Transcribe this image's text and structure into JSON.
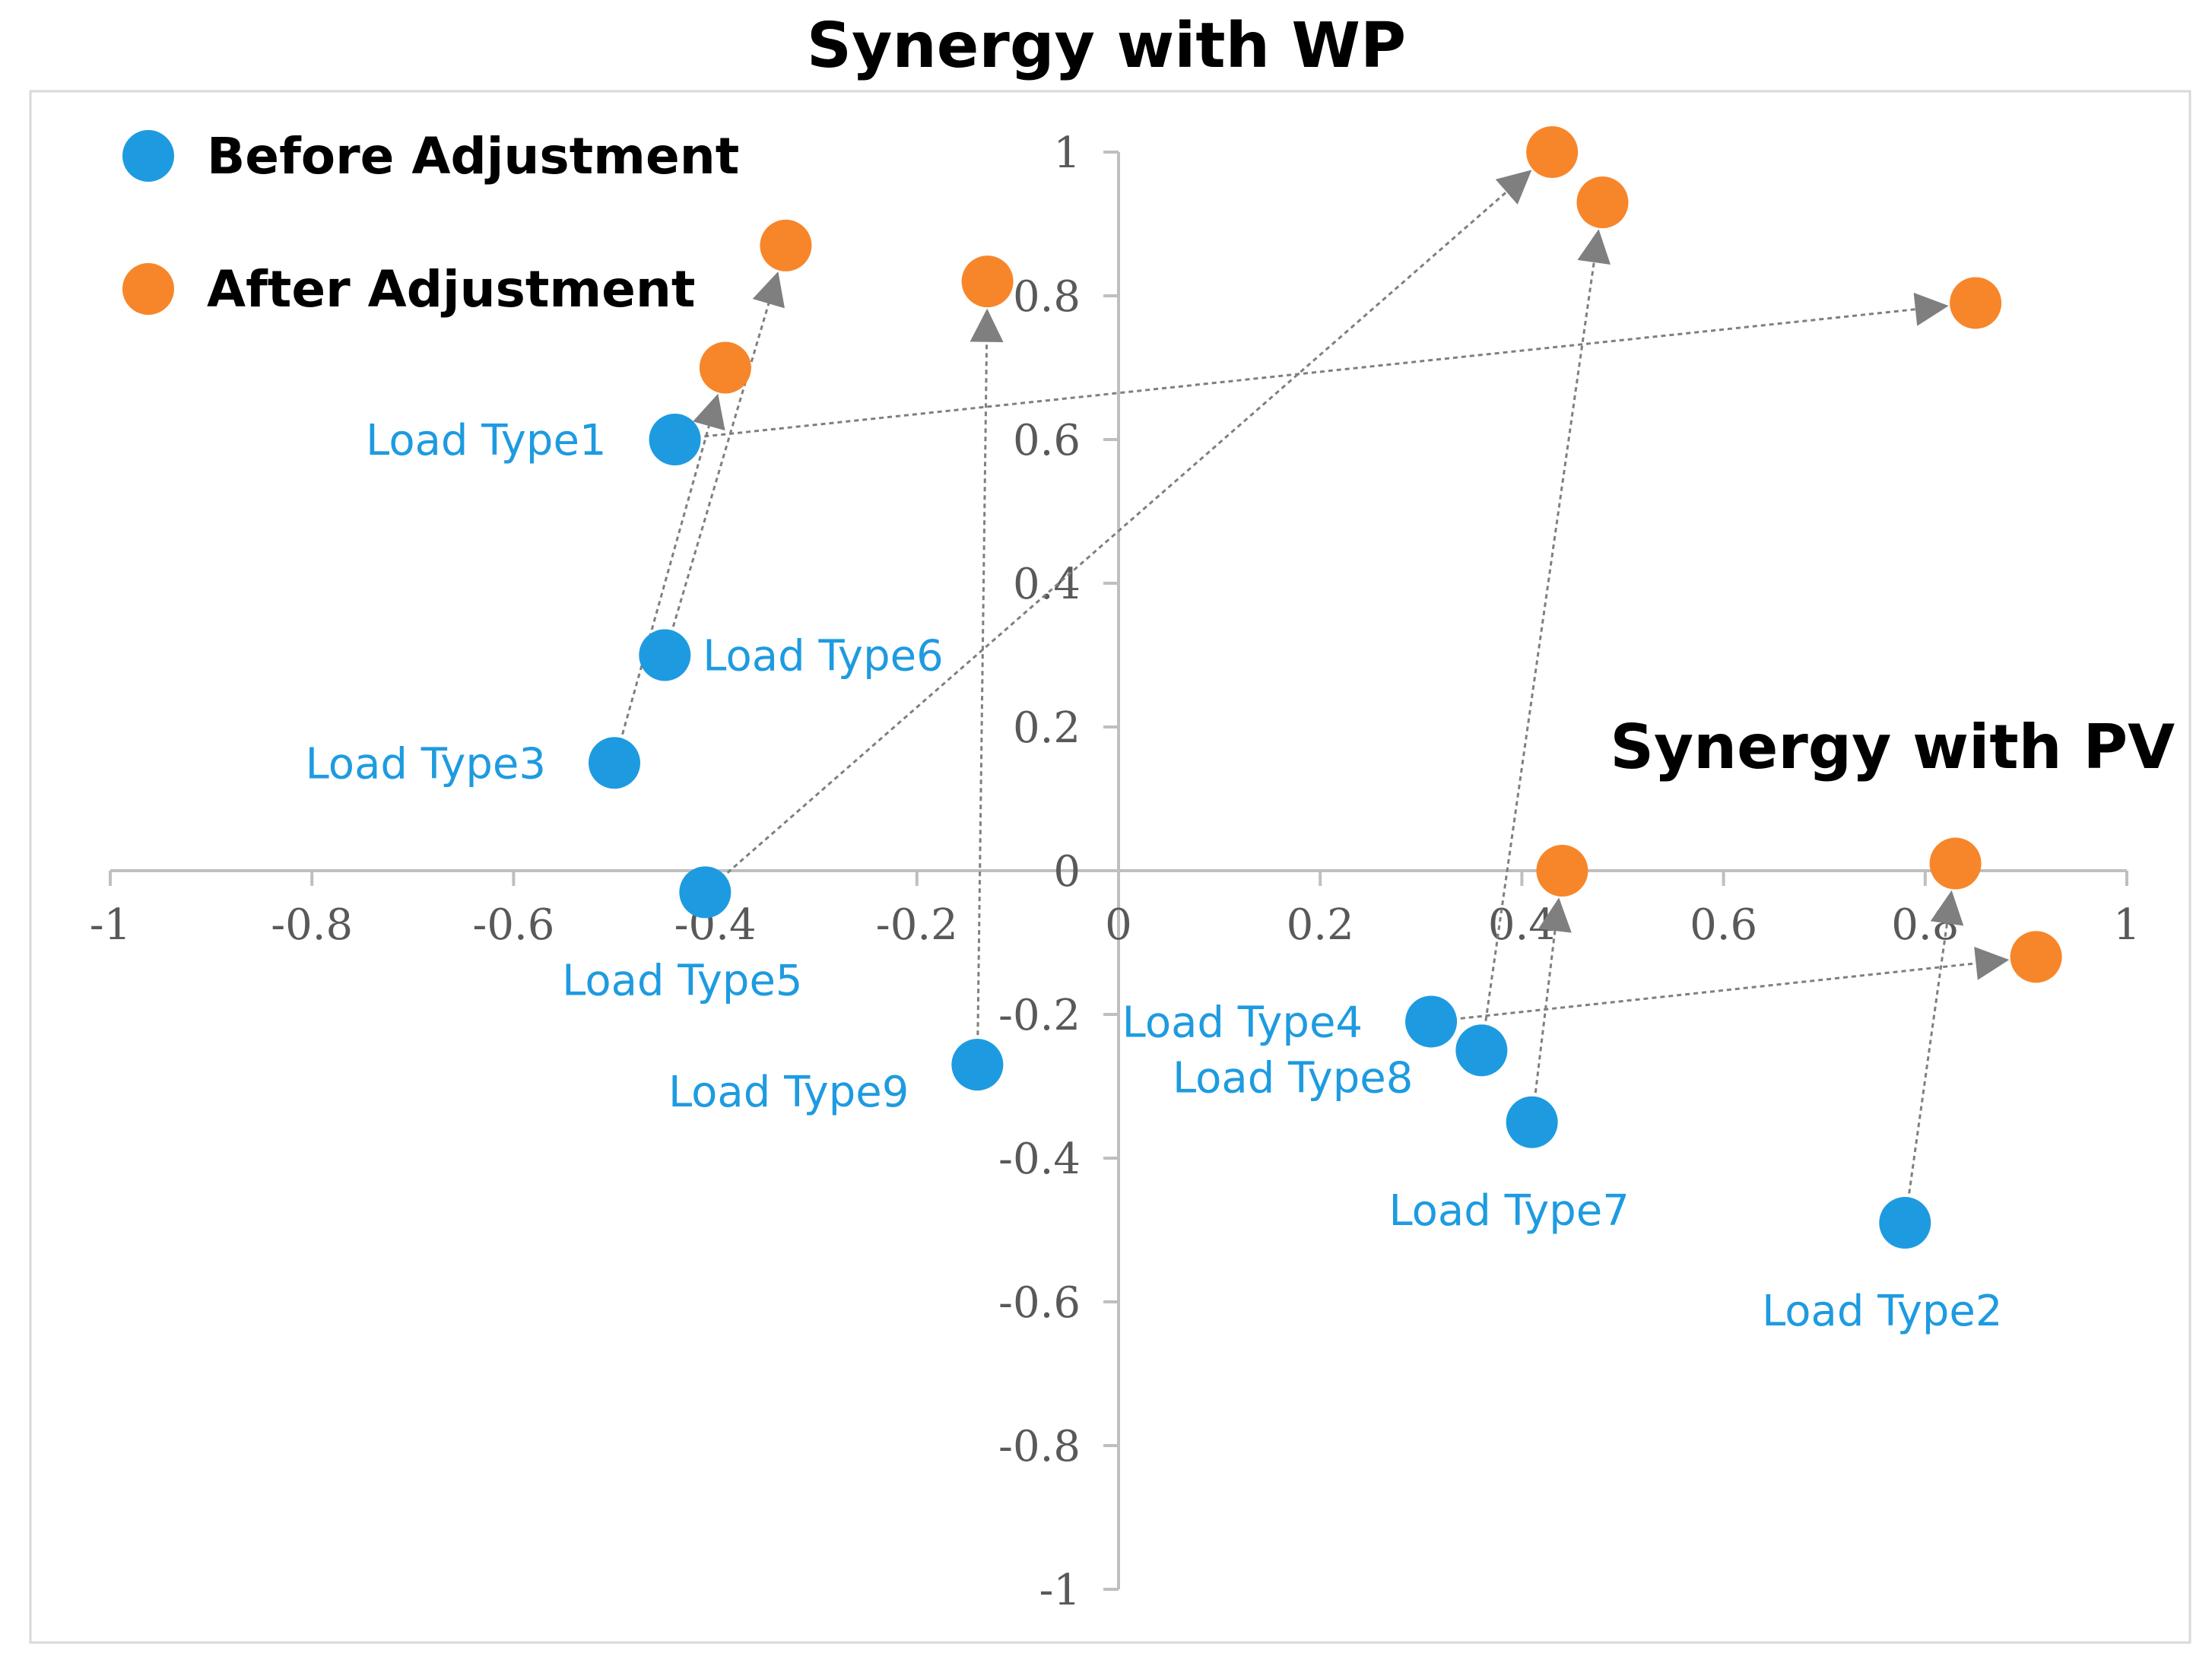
{
  "chart_data": {
    "type": "scatter",
    "title": "Synergy with WP",
    "xlabel": "Synergy with PV",
    "ylabel": "Synergy with WP",
    "xlim": [
      -1,
      1
    ],
    "ylim": [
      -1,
      1
    ],
    "x_ticks": [
      "-1",
      "-0.8",
      "-0.6",
      "-0.4",
      "-0.2",
      "0",
      "0.2",
      "0.4",
      "0.6",
      "0.8",
      "1"
    ],
    "y_ticks": [
      "1",
      "0.8",
      "0.6",
      "0.4",
      "0.2",
      "0",
      "-0.2",
      "-0.4",
      "-0.6",
      "-0.8",
      "-1"
    ],
    "legend": {
      "position": "top-left",
      "entries": [
        {
          "name": "Before Adjustment",
          "color": "#1e9be0"
        },
        {
          "name": "After Adjustment",
          "color": "#f7862b"
        }
      ]
    },
    "series": [
      {
        "name": "Before Adjustment",
        "color": "#1e9be0",
        "points": [
          {
            "label": "Load Type1",
            "x": -0.44,
            "y": 0.6
          },
          {
            "label": "Load Type2",
            "x": 0.78,
            "y": -0.49
          },
          {
            "label": "Load Type3",
            "x": -0.5,
            "y": 0.15
          },
          {
            "label": "Load Type4",
            "x": 0.31,
            "y": -0.21
          },
          {
            "label": "Load Type5",
            "x": -0.41,
            "y": -0.03
          },
          {
            "label": "Load Type6",
            "x": -0.45,
            "y": 0.3
          },
          {
            "label": "Load Type7",
            "x": 0.41,
            "y": -0.35
          },
          {
            "label": "Load Type8",
            "x": 0.36,
            "y": -0.25
          },
          {
            "label": "Load Type9",
            "x": -0.14,
            "y": -0.27
          }
        ]
      },
      {
        "name": "After Adjustment",
        "color": "#f7862b",
        "points": [
          {
            "label": "Load Type1",
            "x": 0.85,
            "y": 0.79
          },
          {
            "label": "Load Type2",
            "x": 0.83,
            "y": 0.01
          },
          {
            "label": "Load Type3",
            "x": -0.39,
            "y": 0.7
          },
          {
            "label": "Load Type4",
            "x": 0.91,
            "y": -0.12
          },
          {
            "label": "Load Type5",
            "x": 0.43,
            "y": 1.0
          },
          {
            "label": "Load Type6",
            "x": -0.33,
            "y": 0.87
          },
          {
            "label": "Load Type7",
            "x": 0.44,
            "y": 0.0
          },
          {
            "label": "Load Type8",
            "x": 0.48,
            "y": 0.93
          },
          {
            "label": "Load Type9",
            "x": -0.13,
            "y": 0.82
          }
        ]
      }
    ]
  }
}
